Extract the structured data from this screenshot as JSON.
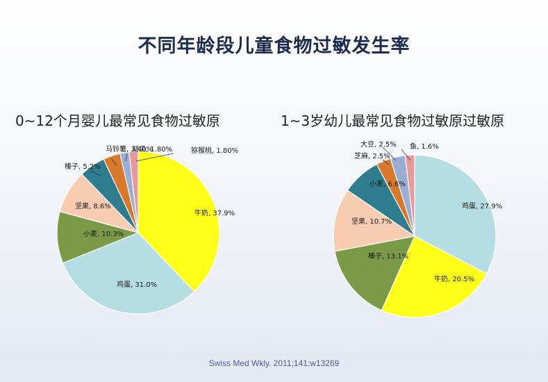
{
  "title": "不同年龄段儿童食物过敏发生率",
  "source": "Swiss Med Wkly. 2011;141:w13269",
  "chart_data": [
    {
      "type": "pie",
      "title": "0~12个月婴儿最常见食物过敏原",
      "slices": [
        {
          "label": "牛奶, 37.9%",
          "name": "牛奶",
          "value": 37.9,
          "color": "#ffff1a"
        },
        {
          "label": "鸡蛋, 31.0%",
          "name": "鸡蛋",
          "value": 31.0,
          "color": "#b4dde4"
        },
        {
          "label": "小麦, 10.3%",
          "name": "小麦",
          "value": 10.3,
          "color": "#7a9a47"
        },
        {
          "label": "坚果, 8.6%",
          "name": "坚果",
          "value": 8.6,
          "color": "#f7ccb0"
        },
        {
          "label": "榛子, 5.2%",
          "name": "榛子",
          "value": 5.2,
          "color": "#2e7d8f"
        },
        {
          "label": "马铃薯, 3.40%",
          "name": "马铃薯",
          "value": 3.4,
          "color": "#d8782a"
        },
        {
          "label": "胡瓜, 1.80%",
          "name": "胡瓜",
          "value": 1.8,
          "color": "#9aaed4"
        },
        {
          "label": "猕猴桃, 1.80%",
          "name": "猕猴桃",
          "value": 1.8,
          "color": "#e8999b"
        }
      ]
    },
    {
      "type": "pie",
      "title": "1~3岁幼儿最常见食物过敏原过敏原",
      "slices": [
        {
          "label": "鸡蛋, 27.9%",
          "name": "鸡蛋",
          "value": 27.9,
          "color": "#b4dde4"
        },
        {
          "label": "牛奶, 20.5%",
          "name": "牛奶",
          "value": 20.5,
          "color": "#ffff1a"
        },
        {
          "label": "榛子, 13.1%",
          "name": "榛子",
          "value": 13.1,
          "color": "#7a9a47"
        },
        {
          "label": "坚果, 10.7%",
          "name": "坚果",
          "value": 10.7,
          "color": "#f7ccb0"
        },
        {
          "label": "小麦, 6.6%",
          "name": "小麦",
          "value": 6.6,
          "color": "#2e7d8f"
        },
        {
          "label": "芝麻, 2.5%",
          "name": "芝麻",
          "value": 2.5,
          "color": "#d8782a"
        },
        {
          "label": "大豆, 2.5%",
          "name": "大豆",
          "value": 2.5,
          "color": "#9aaed4"
        },
        {
          "label": "鱼, 1.6%",
          "name": "鱼",
          "value": 1.6,
          "color": "#e8999b"
        }
      ]
    }
  ]
}
